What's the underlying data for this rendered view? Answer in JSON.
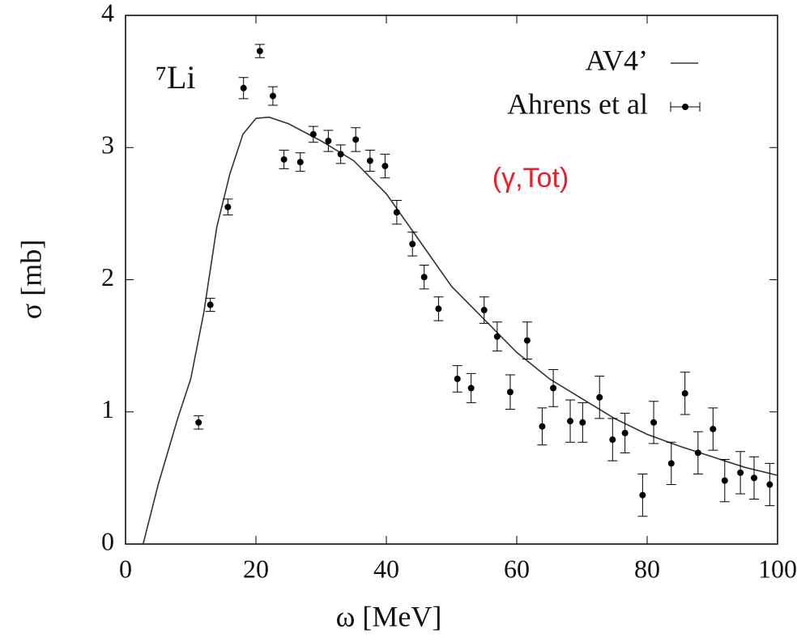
{
  "chart_data": {
    "type": "line",
    "x_label": "ω [MeV]",
    "y_label": "σ [mb]",
    "annotations": [
      "⁷Li",
      "(γ,Tot)"
    ],
    "xlim": [
      0,
      100
    ],
    "ylim": [
      0,
      4
    ],
    "xticks": [
      0,
      20,
      40,
      60,
      80,
      100
    ],
    "yticks": [
      0,
      1,
      2,
      3,
      4
    ],
    "legend": "top-right",
    "series": [
      {
        "name": "AV4’",
        "type": "line",
        "color": "#333333",
        "x": [
          2.7,
          5,
          8,
          10,
          12,
          14,
          16,
          18,
          20,
          22,
          25,
          30,
          35,
          40,
          45,
          50,
          55,
          60,
          65,
          70,
          75,
          80,
          85,
          90,
          95,
          100
        ],
        "values": [
          0,
          0.45,
          0.95,
          1.25,
          1.75,
          2.4,
          2.8,
          3.1,
          3.22,
          3.23,
          3.18,
          3.05,
          2.9,
          2.65,
          2.3,
          1.95,
          1.7,
          1.45,
          1.25,
          1.1,
          0.95,
          0.83,
          0.74,
          0.66,
          0.58,
          0.52
        ]
      },
      {
        "name": "Ahrens et al",
        "type": "scatter",
        "color": "#000000",
        "x": [
          11.2,
          13.0,
          15.7,
          18.1,
          20.6,
          22.6,
          24.3,
          26.8,
          28.8,
          31.1,
          33.0,
          35.3,
          37.5,
          39.8,
          41.6,
          44.0,
          45.8,
          48.0,
          50.9,
          53.0,
          55.0,
          57.0,
          59.0,
          61.6,
          63.9,
          65.6,
          68.2,
          70.1,
          72.7,
          74.7,
          76.6,
          79.3,
          81.0,
          83.7,
          85.8,
          87.8,
          90.1,
          91.9,
          94.3,
          96.4,
          98.8
        ],
        "values": [
          0.92,
          1.81,
          2.55,
          3.45,
          3.73,
          3.39,
          2.91,
          2.89,
          3.1,
          3.05,
          2.95,
          3.06,
          2.9,
          2.86,
          2.51,
          2.27,
          2.02,
          1.78,
          1.25,
          1.18,
          1.77,
          1.57,
          1.15,
          1.54,
          0.89,
          1.18,
          0.93,
          0.92,
          1.11,
          0.79,
          0.84,
          0.37,
          0.92,
          0.61,
          1.14,
          0.69,
          0.87,
          0.48,
          0.54,
          0.5,
          0.45
        ],
        "errors": [
          0.05,
          0.05,
          0.06,
          0.08,
          0.05,
          0.07,
          0.07,
          0.07,
          0.06,
          0.08,
          0.07,
          0.09,
          0.08,
          0.09,
          0.09,
          0.09,
          0.09,
          0.09,
          0.1,
          0.11,
          0.1,
          0.11,
          0.13,
          0.14,
          0.14,
          0.14,
          0.16,
          0.15,
          0.16,
          0.16,
          0.15,
          0.16,
          0.16,
          0.16,
          0.16,
          0.16,
          0.16,
          0.16,
          0.16,
          0.16,
          0.16
        ]
      }
    ]
  }
}
